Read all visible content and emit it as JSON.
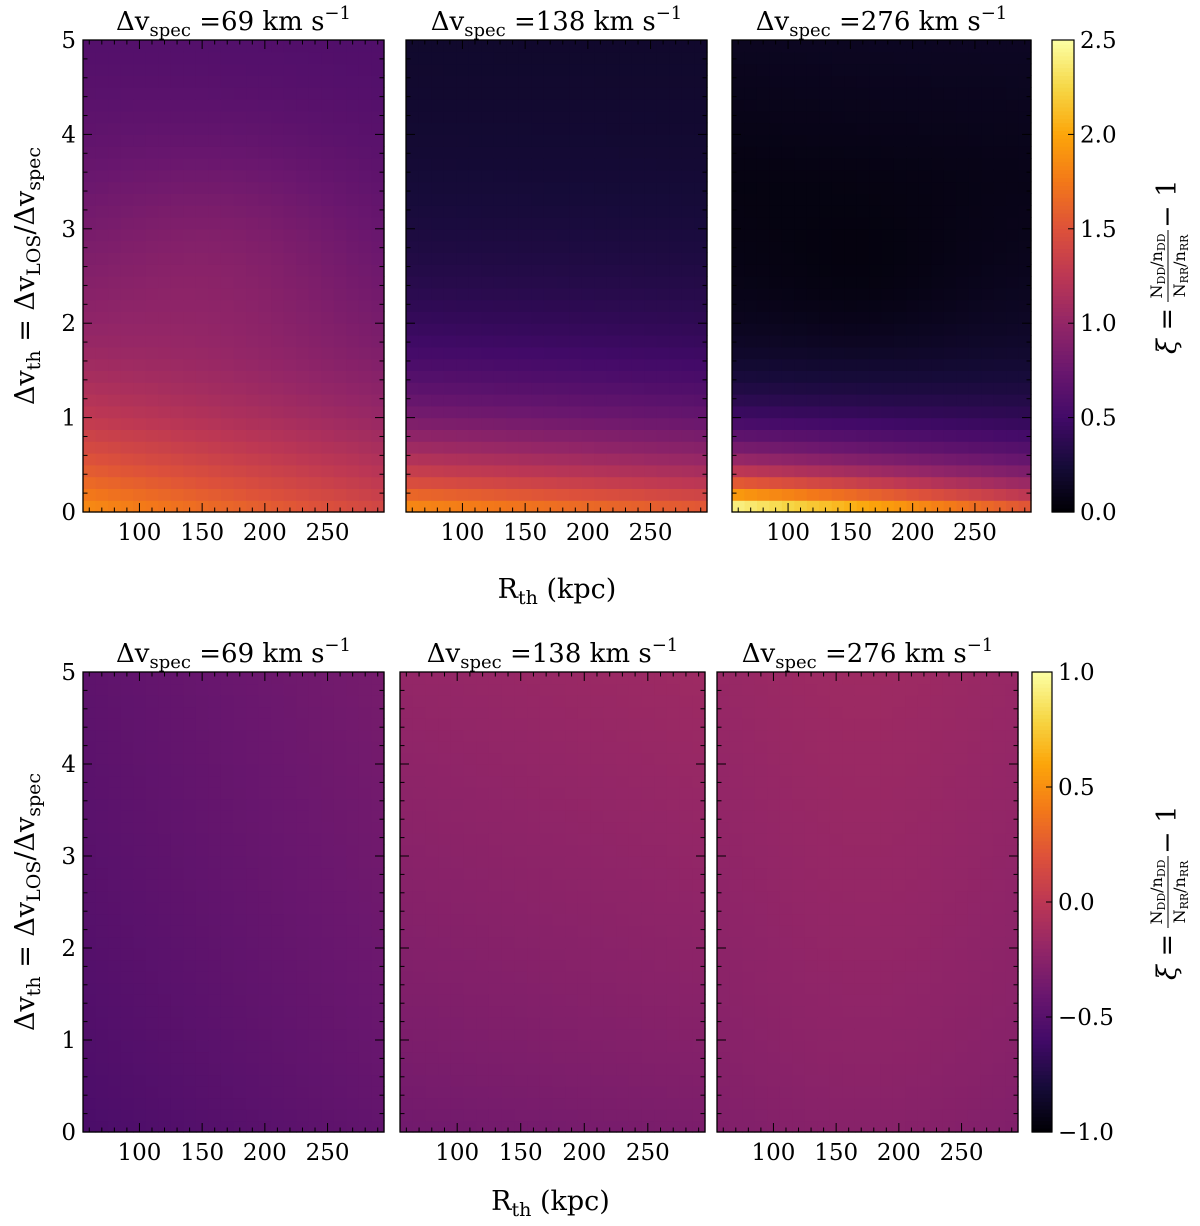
{
  "chart_data": [
    {
      "type": "heatmap",
      "panels": [
        {
          "title_main": "Δv",
          "title_sub": "spec",
          "title_rest": " =69 km s",
          "title_sup": "−1"
        },
        {
          "title_main": "Δv",
          "title_sub": "spec",
          "title_rest": " =138 km s",
          "title_sup": "−1"
        },
        {
          "title_main": "Δv",
          "title_sub": "spec",
          "title_rest": " =276 km s",
          "title_sup": "−1"
        }
      ],
      "xlabel": {
        "main": "R",
        "sub": "th",
        "rest": " (kpc)"
      },
      "ylabel": {
        "p1": "Δv",
        "s1": "th",
        "p2": " = Δv",
        "s2": "LOS",
        "p3": "/Δv",
        "s3": "spec"
      },
      "xlim": [
        55,
        295
      ],
      "ylim": [
        0,
        5
      ],
      "xticks": [
        "100",
        "150",
        "200",
        "250"
      ],
      "yticks": [
        "0",
        "1",
        "2",
        "3",
        "4",
        "5"
      ],
      "colorbar": {
        "min": 0.0,
        "max": 2.5,
        "ticks": [
          "0.0",
          "0.5",
          "1.0",
          "1.5",
          "2.0",
          "2.5"
        ],
        "colormap": "inferno"
      },
      "cblabel": {
        "xi": "ξ = ",
        "num": "N",
        "num_sub": "DD",
        "num_rest": "/n",
        "num_sub2": "DD",
        "den": "N",
        "den_sub": "RR",
        "den_rest": "/n",
        "den_sub2": "RR",
        "tail": " − 1"
      },
      "grid": "off"
    },
    {
      "type": "heatmap",
      "panels": [
        {
          "title_main": "Δv",
          "title_sub": "spec",
          "title_rest": " =69 km s",
          "title_sup": "−1"
        },
        {
          "title_main": "Δv",
          "title_sub": "spec",
          "title_rest": " =138 km s",
          "title_sup": "−1"
        },
        {
          "title_main": "Δv",
          "title_sub": "spec",
          "title_rest": " =276 km s",
          "title_sup": "−1"
        }
      ],
      "xlabel": {
        "main": "R",
        "sub": "th",
        "rest": " (kpc)"
      },
      "ylabel": {
        "p1": "Δv",
        "s1": "th",
        "p2": " = Δv",
        "s2": "LOS",
        "p3": "/Δv",
        "s3": "spec"
      },
      "xlim": [
        55,
        295
      ],
      "ylim": [
        0,
        5
      ],
      "xticks": [
        "100",
        "150",
        "200",
        "250"
      ],
      "yticks": [
        "0",
        "1",
        "2",
        "3",
        "4",
        "5"
      ],
      "colorbar": {
        "min": -1.0,
        "max": 1.0,
        "ticks": [
          "−1.0",
          "−0.5",
          "0.0",
          "0.5",
          "1.0"
        ],
        "colormap": "inferno"
      },
      "cblabel": {
        "xi": "ξ = ",
        "num": "N",
        "num_sub": "DD",
        "num_rest": "/n",
        "num_sub2": "DD",
        "den": "N",
        "den_sub": "RR",
        "den_rest": "/n",
        "den_sub2": "RR",
        "tail": " − 1"
      },
      "grid": "off"
    }
  ]
}
